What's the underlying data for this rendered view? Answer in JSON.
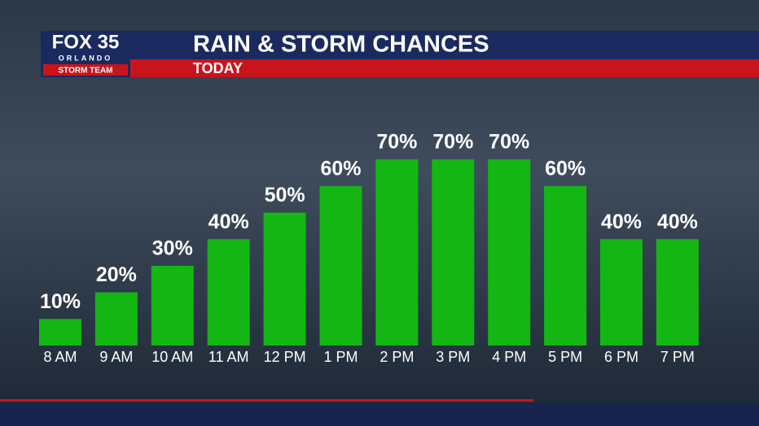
{
  "logo": {
    "name": "FOX 35",
    "city": "ORLANDO",
    "team": "STORM TEAM"
  },
  "chart_data": {
    "type": "bar",
    "title": "RAIN & STORM CHANCES",
    "subtitle": "TODAY",
    "categories": [
      "8 AM",
      "9 AM",
      "10 AM",
      "11 AM",
      "12 PM",
      "1 PM",
      "2 PM",
      "3 PM",
      "4 PM",
      "5 PM",
      "6 PM",
      "7 PM"
    ],
    "values": [
      10,
      20,
      30,
      40,
      50,
      60,
      70,
      70,
      70,
      60,
      40,
      40
    ],
    "value_labels": [
      "10%",
      "20%",
      "30%",
      "40%",
      "50%",
      "60%",
      "70%",
      "70%",
      "70%",
      "60%",
      "40%",
      "40%"
    ],
    "color": "#13b613"
  }
}
